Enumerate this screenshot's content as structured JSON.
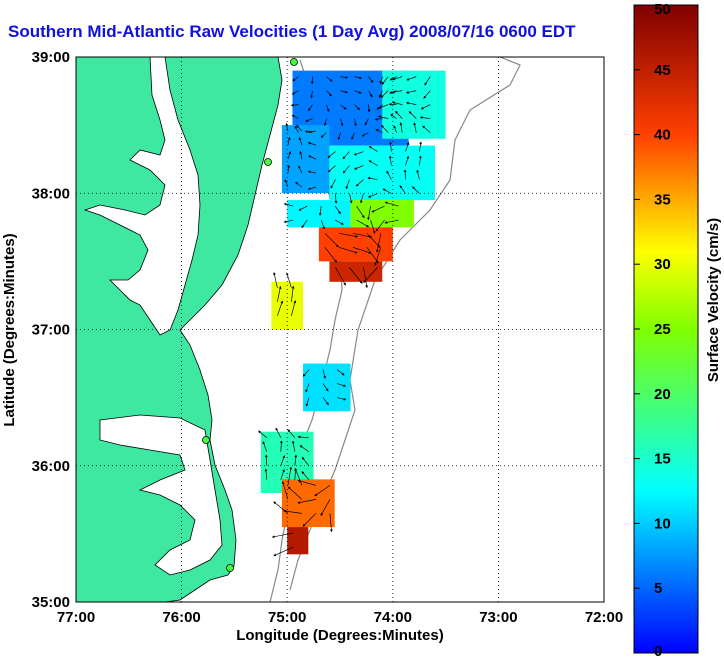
{
  "title": "Southern Mid-Atlantic Raw Velocities (1 Day Avg) 2008/07/16 0600 EDT",
  "axes": {
    "xlabel": "Longitude (Degrees:Minutes)",
    "ylabel": "Latitude (Degrees:Minutes)",
    "x_ticks": [
      "77:00",
      "76:00",
      "75:00",
      "74:00",
      "73:00",
      "72:00"
    ],
    "y_ticks": [
      "39:00",
      "38:00",
      "37:00",
      "36:00",
      "35:00"
    ]
  },
  "colorbar": {
    "label": "Surface Velocity (cm/s)",
    "ticks": [
      "50",
      "45",
      "40",
      "35",
      "30",
      "25",
      "20",
      "15",
      "10",
      "5",
      "0"
    ],
    "min": 0,
    "max": 50
  },
  "colors": {
    "land": "#3ee8a0",
    "water": "#ffffff",
    "title": "#1010e0"
  },
  "chart_data": {
    "type": "heatmap",
    "xlim": [
      -77,
      -72
    ],
    "ylim": [
      35,
      39
    ],
    "grid": true,
    "regions": [
      {
        "lon": [
          -74.95,
          -73.85
        ],
        "lat": [
          38.35,
          38.9
        ],
        "speed": 6
      },
      {
        "lon": [
          -74.1,
          -73.5
        ],
        "lat": [
          38.4,
          38.9
        ],
        "speed": 14
      },
      {
        "lon": [
          -75.05,
          -74.6
        ],
        "lat": [
          38.0,
          38.5
        ],
        "speed": 8
      },
      {
        "lon": [
          -74.6,
          -73.6
        ],
        "lat": [
          37.95,
          38.35
        ],
        "speed": 13
      },
      {
        "lon": [
          -75.0,
          -74.4
        ],
        "lat": [
          37.75,
          37.95
        ],
        "speed": 12
      },
      {
        "lon": [
          -74.4,
          -73.8
        ],
        "lat": [
          37.75,
          37.95
        ],
        "speed": 25
      },
      {
        "lon": [
          -74.7,
          -74.0
        ],
        "lat": [
          37.5,
          37.75
        ],
        "speed": 40
      },
      {
        "lon": [
          -74.6,
          -74.1
        ],
        "lat": [
          37.35,
          37.5
        ],
        "speed": 44
      },
      {
        "lon": [
          -75.15,
          -74.85
        ],
        "lat": [
          37.0,
          37.35
        ],
        "speed": 30
      },
      {
        "lon": [
          -74.85,
          -74.4
        ],
        "lat": [
          36.4,
          36.75
        ],
        "speed": 11
      },
      {
        "lon": [
          -75.25,
          -74.75
        ],
        "lat": [
          35.8,
          36.25
        ],
        "speed": 16
      },
      {
        "lon": [
          -75.05,
          -74.55
        ],
        "lat": [
          35.55,
          35.9
        ],
        "speed": 38
      },
      {
        "lon": [
          -75.0,
          -74.8
        ],
        "lat": [
          35.35,
          35.55
        ],
        "speed": 46
      }
    ]
  }
}
